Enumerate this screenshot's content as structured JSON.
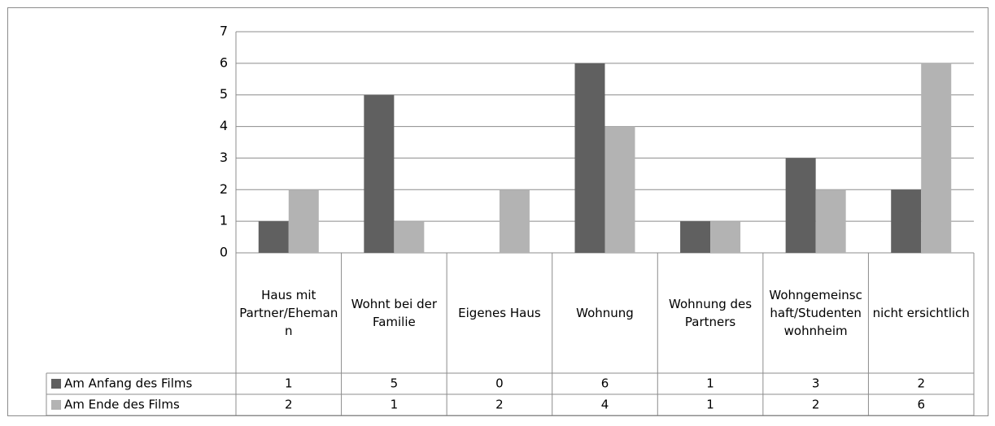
{
  "chart_data": {
    "type": "bar",
    "categories": [
      "Haus mit Partner/Ehemann",
      "Wohnt bei der Familie",
      "Eigenes Haus",
      "Wohnung",
      "Wohnung des Partners",
      "Wohngemeinschaft/Studentenwohnheim",
      "nicht ersichtlich"
    ],
    "series": [
      {
        "name": "Am Anfang des Films",
        "color": "#606060",
        "values": [
          1,
          5,
          0,
          6,
          1,
          3,
          2
        ]
      },
      {
        "name": "Am Ende des Films",
        "color": "#b3b3b3",
        "values": [
          2,
          1,
          2,
          4,
          1,
          2,
          6
        ]
      }
    ],
    "ylim": [
      0,
      7
    ],
    "yticks": [
      0,
      1,
      2,
      3,
      4,
      5,
      6,
      7
    ],
    "grid": true,
    "data_table": true
  }
}
